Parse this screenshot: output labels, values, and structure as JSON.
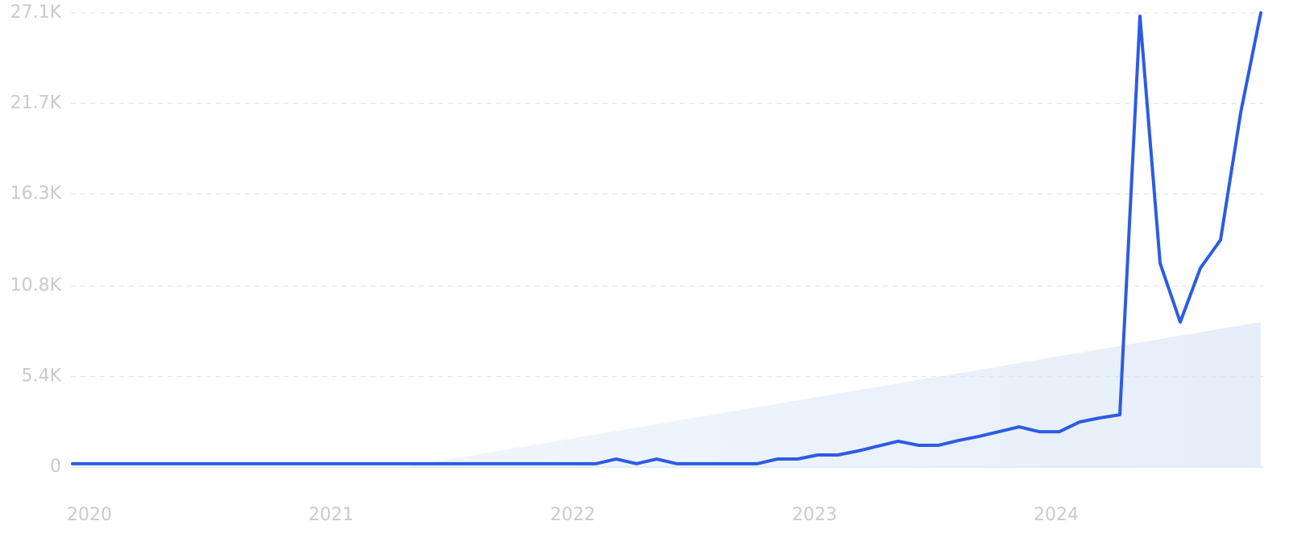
{
  "chart_data": {
    "type": "line",
    "categories": [
      "2020",
      null,
      null,
      null,
      null,
      null,
      null,
      null,
      null,
      null,
      null,
      null,
      "2021",
      null,
      null,
      null,
      null,
      null,
      null,
      null,
      null,
      null,
      null,
      null,
      "2022",
      null,
      null,
      null,
      null,
      null,
      null,
      null,
      null,
      null,
      null,
      null,
      "2023",
      null,
      null,
      null,
      null,
      null,
      null,
      null,
      null,
      null,
      null,
      null,
      "2024",
      null,
      null,
      null,
      null,
      null,
      null,
      null,
      null,
      null,
      null,
      null
    ],
    "values": [
      200,
      200,
      200,
      200,
      200,
      200,
      200,
      200,
      200,
      200,
      200,
      200,
      200,
      200,
      200,
      200,
      200,
      200,
      200,
      200,
      200,
      200,
      200,
      200,
      200,
      200,
      200,
      480,
      200,
      480,
      200,
      200,
      200,
      200,
      200,
      480,
      480,
      720,
      720,
      960,
      1250,
      1540,
      1300,
      1300,
      1590,
      1830,
      2110,
      2400,
      2110,
      2110,
      2690,
      2930,
      3120,
      26900,
      12160,
      8650,
      11870,
      13550,
      21140,
      27100
    ],
    "color": "#2d5be3",
    "ylim": [
      0,
      27100
    ],
    "yticks": [
      0,
      {
        "value": 5400,
        "label": "5.4K"
      },
      {
        "value": 10800,
        "label": "10.8K"
      },
      {
        "value": 16300,
        "label": "16.3K"
      },
      {
        "value": 21700,
        "label": "21.7K"
      },
      {
        "value": 27100,
        "label": "27.1K"
      }
    ],
    "grid": true
  }
}
